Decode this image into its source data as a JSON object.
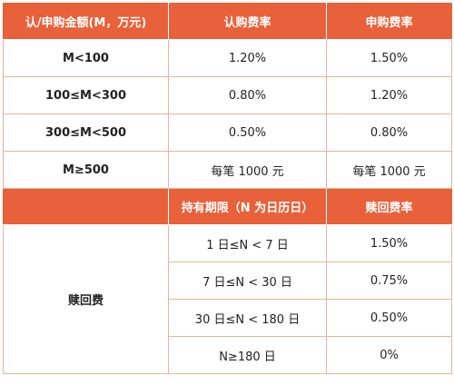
{
  "subscription_table": {
    "headers": [
      "认/申购金额(M，万元)",
      "认购费率",
      "申购费率"
    ],
    "rows": [
      {
        "amount": "M<100",
        "subscribe_rate": "1.20%",
        "purchase_rate": "1.50%"
      },
      {
        "amount": "100≤M<300",
        "subscribe_rate": "0.80%",
        "purchase_rate": "1.20%"
      },
      {
        "amount": "300≤M<500",
        "subscribe_rate": "0.50%",
        "purchase_rate": "0.80%"
      },
      {
        "amount": "M≥500",
        "subscribe_rate": "每笔 1000 元",
        "purchase_rate": "每笔 1000 元"
      }
    ]
  },
  "redemption_table": {
    "headers": [
      "",
      "持有期限（N 为日历日）",
      "赎回费率"
    ],
    "label": "赎回费",
    "rows": [
      {
        "period": "1 日≤N < 7 日",
        "rate": "1.50%"
      },
      {
        "period": "7 日≤N < 30 日",
        "rate": "0.75%"
      },
      {
        "period": "30 日≤N < 180 日",
        "rate": "0.50%"
      },
      {
        "period": "N≥180 日",
        "rate": "0%"
      }
    ]
  },
  "colors": {
    "header_bg": "#e8613a",
    "header_text": "#ffffff",
    "border": "#e8b39c"
  }
}
